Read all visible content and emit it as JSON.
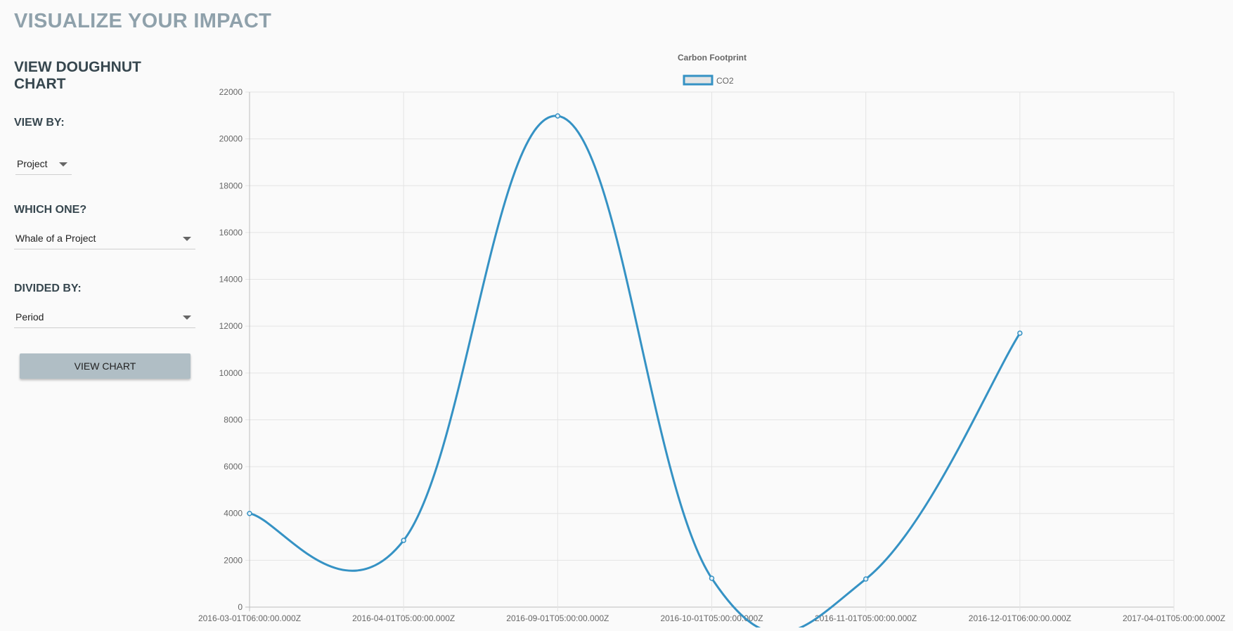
{
  "header": {
    "title": "VISUALIZE YOUR IMPACT"
  },
  "sidebar": {
    "heading": "VIEW DOUGHNUT CHART",
    "view_by": {
      "label": "VIEW BY:",
      "selected": "Project"
    },
    "which_one": {
      "label": "WHICH ONE?",
      "selected": "Whale of a Project"
    },
    "divided_by": {
      "label": "DIVIDED BY:",
      "selected": "Period"
    },
    "view_chart_button": "VIEW CHART"
  },
  "colors": {
    "series": "#3592c4",
    "legend_fill": "#e5e5e5",
    "title_text": "#8fa1ab",
    "heading_text": "#37474f",
    "button_bg": "#b0bec5"
  },
  "chart_data": {
    "type": "line",
    "title": "Carbon Footprint",
    "legend_position": "top",
    "grid": true,
    "x_type": "time",
    "x_tick_labels": [
      "2016-03-01T06:00:00.000Z",
      "2016-04-01T05:00:00.000Z",
      "2016-09-01T05:00:00.000Z",
      "2016-10-01T05:00:00.000Z",
      "2016-11-01T05:00:00.000Z",
      "2016-12-01T06:00:00.000Z",
      "2017-04-01T05:00:00.000Z"
    ],
    "ylim": [
      0,
      22000
    ],
    "y_ticks": [
      0,
      2000,
      4000,
      6000,
      8000,
      10000,
      12000,
      14000,
      16000,
      18000,
      20000,
      22000
    ],
    "series": [
      {
        "name": "CO2",
        "x": [
          "2016-03-01T06:00:00.000Z",
          "2016-04-01T05:00:00.000Z",
          "2016-09-01T05:00:00.000Z",
          "2016-10-01T05:00:00.000Z",
          "2016-11-01T05:00:00.000Z",
          "2016-12-01T06:00:00.000Z"
        ],
        "values": [
          4000,
          2850,
          20980,
          1230,
          1200,
          11700
        ]
      }
    ]
  }
}
